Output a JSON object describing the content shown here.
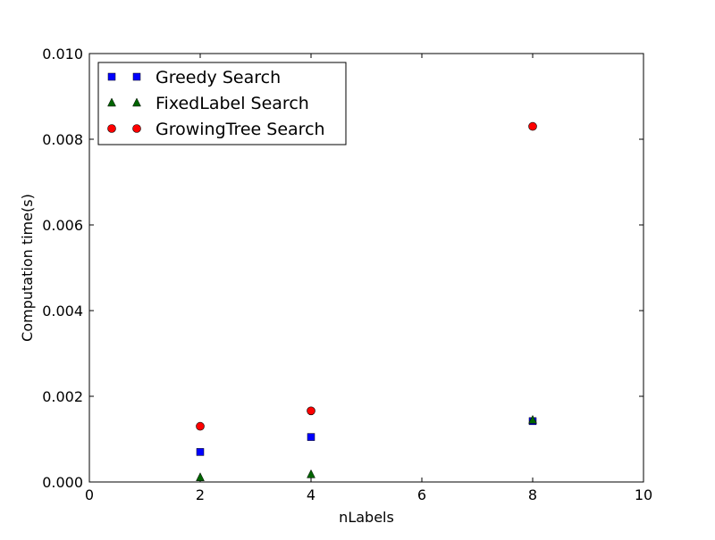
{
  "chart_data": {
    "type": "scatter",
    "title": "",
    "xlabel": "nLabels",
    "ylabel": "Computation time(s)",
    "xlim": [
      0,
      10
    ],
    "ylim": [
      0,
      0.01
    ],
    "x_ticks": [
      "0",
      "2",
      "4",
      "6",
      "8",
      "10"
    ],
    "y_ticks": [
      "0.000",
      "0.002",
      "0.004",
      "0.006",
      "0.008",
      "0.010"
    ],
    "grid": false,
    "legend_position": "top-left",
    "series": [
      {
        "name": "Greedy Search",
        "marker": "square",
        "color": "#0000ff",
        "x": [
          2,
          4,
          8
        ],
        "y": [
          0.0007,
          0.00105,
          0.00142
        ]
      },
      {
        "name": "FixedLabel Search",
        "marker": "triangle",
        "color": "#006400",
        "x": [
          2,
          4,
          8
        ],
        "y": [
          0.00011,
          0.00018,
          0.00145
        ]
      },
      {
        "name": "GrowingTree Search",
        "marker": "circle",
        "color": "#ff0000",
        "x": [
          2,
          4,
          8
        ],
        "y": [
          0.0013,
          0.00166,
          0.0083
        ]
      }
    ]
  }
}
